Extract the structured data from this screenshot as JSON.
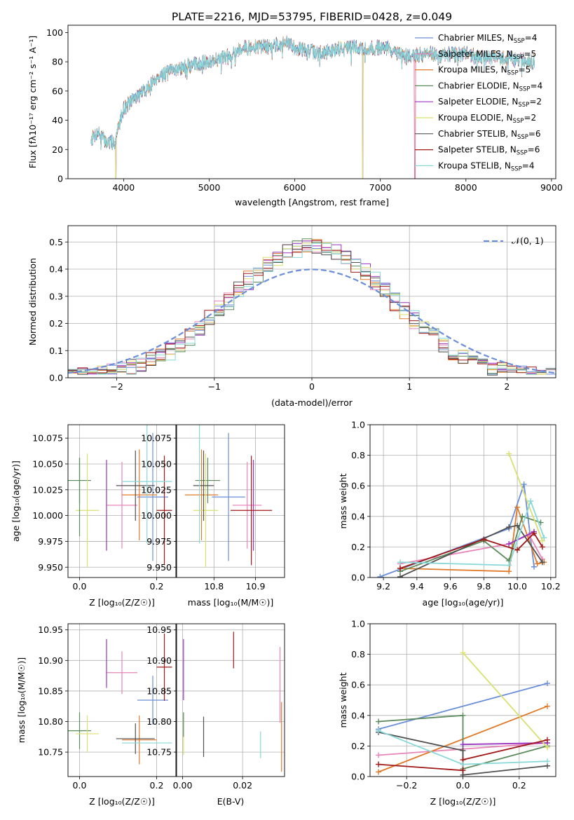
{
  "figure": {
    "title": "PLATE=2216, MJD=53795, FIBERID=0428, z=0.049",
    "palette": [
      "#6a8ed8",
      "#e885b8",
      "#e07a2a",
      "#5b8a5b",
      "#9a34c0",
      "#d9e070",
      "#505050",
      "#a01818",
      "#88d8d8"
    ]
  },
  "chart_data": [
    {
      "id": "spectrum",
      "type": "line",
      "xlabel": "wavelength [Angstrom, rest frame]",
      "ylabel": "Flux [fλ10⁻¹⁷ erg cm⁻² s⁻¹ A⁻¹]",
      "xlim": [
        3350,
        9050
      ],
      "ylim": [
        0,
        105
      ],
      "xticks": [
        4000,
        5000,
        6000,
        7000,
        8000,
        9000
      ],
      "yticks": [
        0,
        20,
        40,
        60,
        80,
        100
      ],
      "legend_position": "right",
      "legend": [
        {
          "label": "Chabrier MILES, N",
          "sub": "SSP",
          "tail": "=4"
        },
        {
          "label": "Salpeter MILES, N",
          "sub": "SSP",
          "tail": "=5"
        },
        {
          "label": "Kroupa MILES, N",
          "sub": "SSP",
          "tail": "=5"
        },
        {
          "label": "Chabrier ELODIE, N",
          "sub": "SSP",
          "tail": "=4"
        },
        {
          "label": "Salpeter ELODIE, N",
          "sub": "SSP",
          "tail": "=2"
        },
        {
          "label": "Kroupa ELODIE, N",
          "sub": "SSP",
          "tail": "=2"
        },
        {
          "label": "Chabrier STELIB, N",
          "sub": "SSP",
          "tail": "=6"
        },
        {
          "label": "Salpeter STELIB, N",
          "sub": "SSP",
          "tail": "=6"
        },
        {
          "label": "Kroupa STELIB, N",
          "sub": "SSP",
          "tail": "=4"
        }
      ],
      "x_range": [
        3620,
        8800
      ],
      "continuum": [
        [
          3620,
          27
        ],
        [
          3700,
          32
        ],
        [
          3800,
          25
        ],
        [
          3900,
          25
        ],
        [
          3960,
          40
        ],
        [
          4000,
          48
        ],
        [
          4100,
          54
        ],
        [
          4200,
          58
        ],
        [
          4300,
          63
        ],
        [
          4400,
          70
        ],
        [
          4500,
          72
        ],
        [
          4600,
          75
        ],
        [
          4700,
          76
        ],
        [
          4800,
          78
        ],
        [
          4900,
          79
        ],
        [
          5000,
          80
        ],
        [
          5100,
          82
        ],
        [
          5200,
          83
        ],
        [
          5300,
          87
        ],
        [
          5400,
          90
        ],
        [
          5500,
          89
        ],
        [
          5600,
          91
        ],
        [
          5700,
          90
        ],
        [
          5800,
          92
        ],
        [
          5900,
          93
        ],
        [
          6000,
          90
        ],
        [
          6100,
          88
        ],
        [
          6200,
          87
        ],
        [
          6300,
          86
        ],
        [
          6400,
          87
        ],
        [
          6500,
          89
        ],
        [
          6600,
          90
        ],
        [
          6700,
          90
        ],
        [
          6800,
          89
        ],
        [
          6900,
          89
        ],
        [
          7000,
          90
        ],
        [
          7100,
          89
        ],
        [
          7200,
          85
        ],
        [
          7300,
          84
        ],
        [
          7400,
          85
        ],
        [
          7500,
          85
        ],
        [
          7600,
          86
        ],
        [
          7700,
          84
        ],
        [
          7800,
          85
        ],
        [
          7900,
          85
        ],
        [
          8000,
          86
        ],
        [
          8100,
          84
        ],
        [
          8200,
          83
        ],
        [
          8300,
          83
        ],
        [
          8400,
          83
        ],
        [
          8500,
          82
        ],
        [
          8600,
          82
        ],
        [
          8700,
          81
        ],
        [
          8800,
          80
        ]
      ],
      "dropouts": [
        [
          3905,
          3912,
          4,
          5
        ],
        [
          6790,
          6797,
          4,
          5
        ],
        [
          7400,
          7410,
          1,
          7
        ]
      ]
    },
    {
      "id": "residuals",
      "type": "histogram",
      "xlabel": "(data-model)/error",
      "ylabel": "Normed distribution",
      "xlim": [
        -2.5,
        2.5
      ],
      "ylim": [
        0,
        0.56
      ],
      "xticks": [
        -2,
        -1,
        0,
        1,
        2
      ],
      "yticks": [
        0.0,
        0.1,
        0.2,
        0.3,
        0.4,
        0.5
      ],
      "legend": "𝒩(0, 1)",
      "bin_width": 0.1,
      "bin_range": [
        -2.5,
        2.5
      ],
      "gaussian": {
        "mu": 0,
        "sigma": 1
      }
    },
    {
      "id": "age-vs-Z",
      "type": "errorbar",
      "xlabel": "Z [log₁₀(Z/Z☉)]",
      "ylabel": "age  [log₁₀(age/yr)]",
      "xlim": [
        -0.03,
        0.25
      ],
      "ylim": [
        9.94,
        10.088
      ],
      "xticks": [
        0.0,
        0.2
      ],
      "yticks": [
        9.95,
        9.975,
        10.0,
        10.025,
        10.05,
        10.075
      ],
      "points": [
        {
          "s": 0,
          "x": 0.19,
          "xerr": 0.04,
          "y": 10.018,
          "yerr": 0.062
        },
        {
          "s": 1,
          "x": 0.11,
          "xerr": 0.04,
          "y": 10.01,
          "yerr": 0.042
        },
        {
          "s": 2,
          "x": 0.155,
          "xerr": 0.045,
          "y": 10.02,
          "yerr": 0.044
        },
        {
          "s": 3,
          "x": 0.0,
          "xerr": 0.03,
          "y": 10.034,
          "yerr": 0.022
        },
        {
          "s": 4,
          "x": 0.07,
          "xerr": 0.0,
          "y": 10.01,
          "yerr": 0.044
        },
        {
          "s": 5,
          "x": 0.02,
          "xerr": 0.03,
          "y": 10.005,
          "yerr": 0.055
        },
        {
          "s": 6,
          "x": 0.145,
          "xerr": 0.05,
          "y": 10.029,
          "yerr": 0.034
        },
        {
          "s": 7,
          "x": 0.22,
          "xerr": 0.02,
          "y": 10.005,
          "yerr": 0.053
        },
        {
          "s": 8,
          "x": 0.175,
          "xerr": 0.065,
          "y": 10.033,
          "yerr": 0.06
        },
        {
          "s": 3,
          "x": 0.0,
          "xerr": 0.0,
          "y": 10.018,
          "yerr": 0.038
        }
      ]
    },
    {
      "id": "age-vs-mass",
      "type": "errorbar",
      "xlabel": "mass [log₁₀(M/M☉)]",
      "ylabel": "",
      "xlim": [
        10.71,
        10.97
      ],
      "ylim": [
        9.94,
        10.088
      ],
      "xticks": [
        10.8,
        10.9
      ],
      "yticks": [
        9.95,
        9.975,
        10.0,
        10.025,
        10.05,
        10.075
      ],
      "points": [
        {
          "s": 0,
          "x": 10.835,
          "xerr": 0.04,
          "y": 10.018,
          "yerr": 0.062
        },
        {
          "s": 1,
          "x": 10.88,
          "xerr": 0.035,
          "y": 10.01,
          "yerr": 0.042
        },
        {
          "s": 2,
          "x": 10.77,
          "xerr": 0.04,
          "y": 10.02,
          "yerr": 0.044
        },
        {
          "s": 3,
          "x": 10.785,
          "xerr": 0.03,
          "y": 10.034,
          "yerr": 0.022
        },
        {
          "s": 4,
          "x": 10.895,
          "xerr": 0.0,
          "y": 10.01,
          "yerr": 0.044
        },
        {
          "s": 5,
          "x": 10.78,
          "xerr": 0.03,
          "y": 10.005,
          "yerr": 0.055
        },
        {
          "s": 6,
          "x": 10.775,
          "xerr": 0.025,
          "y": 10.029,
          "yerr": 0.034
        },
        {
          "s": 7,
          "x": 10.89,
          "xerr": 0.05,
          "y": 10.005,
          "yerr": 0.053
        },
        {
          "s": 8,
          "x": 10.765,
          "xerr": 0.0,
          "y": 10.033,
          "yerr": 0.06
        }
      ]
    },
    {
      "id": "weight-vs-age",
      "type": "line",
      "xlabel": "age  [log₁₀(age/yr)]",
      "ylabel": "mass weight",
      "xlim": [
        9.12,
        10.23
      ],
      "ylim": [
        0,
        1.0
      ],
      "xticks": [
        9.2,
        9.4,
        9.6,
        9.8,
        10.0,
        10.2
      ],
      "yticks": [
        0.0,
        0.2,
        0.4,
        0.6,
        0.8,
        1.0
      ],
      "series": [
        {
          "s": 0,
          "points": [
            [
              9.18,
              0.005
            ],
            [
              9.95,
              0.32
            ],
            [
              10.04,
              0.61
            ],
            [
              10.1,
              0.07
            ]
          ]
        },
        {
          "s": 1,
          "points": [
            [
              9.3,
              0.09
            ],
            [
              9.95,
              0.22
            ],
            [
              10.07,
              0.28
            ],
            [
              10.15,
              0.12
            ]
          ]
        },
        {
          "s": 2,
          "points": [
            [
              9.3,
              0.06
            ],
            [
              9.95,
              0.04
            ],
            [
              10.0,
              0.46
            ],
            [
              10.12,
              0.09
            ],
            [
              10.16,
              0.1
            ]
          ]
        },
        {
          "s": 3,
          "points": [
            [
              9.3,
              0.04
            ],
            [
              9.8,
              0.24
            ],
            [
              9.95,
              0.11
            ],
            [
              10.03,
              0.4
            ],
            [
              10.14,
              0.36
            ]
          ]
        },
        {
          "s": 4,
          "points": [
            [
              9.95,
              0.22
            ],
            [
              10.1,
              0.3
            ]
          ]
        },
        {
          "s": 5,
          "points": [
            [
              9.95,
              0.81
            ],
            [
              10.15,
              0.24
            ]
          ]
        },
        {
          "s": 6,
          "points": [
            [
              9.3,
              0.005
            ],
            [
              9.95,
              0.33
            ],
            [
              10.0,
              0.34
            ],
            [
              10.15,
              0.1
            ]
          ]
        },
        {
          "s": 7,
          "points": [
            [
              9.3,
              0.06
            ],
            [
              9.8,
              0.25
            ],
            [
              10.0,
              0.18
            ],
            [
              10.1,
              0.29
            ],
            [
              10.15,
              0.2
            ]
          ]
        },
        {
          "s": 8,
          "points": [
            [
              9.3,
              0.1
            ],
            [
              9.95,
              0.08
            ],
            [
              10.08,
              0.5
            ],
            [
              10.16,
              0.26
            ]
          ]
        }
      ]
    },
    {
      "id": "mass-vs-Z",
      "type": "errorbar",
      "xlabel": "Z [log₁₀(Z/Z☉)]",
      "ylabel": "mass [log₁₀(M/M☉)]",
      "xlim": [
        -0.03,
        0.25
      ],
      "ylim": [
        10.71,
        10.96
      ],
      "xticks": [
        0.0,
        0.2
      ],
      "yticks": [
        10.75,
        10.8,
        10.85,
        10.9,
        10.95
      ],
      "points": [
        {
          "s": 0,
          "x": 0.19,
          "xerr": 0.04,
          "y": 10.835,
          "yerr": 0.04
        },
        {
          "s": 1,
          "x": 0.11,
          "xerr": 0.04,
          "y": 10.88,
          "yerr": 0.035
        },
        {
          "s": 2,
          "x": 0.155,
          "xerr": 0.045,
          "y": 10.77,
          "yerr": 0.04
        },
        {
          "s": 3,
          "x": 0.0,
          "xerr": 0.03,
          "y": 10.785,
          "yerr": 0.03
        },
        {
          "s": 4,
          "x": 0.07,
          "xerr": 0.0,
          "y": 10.895,
          "yerr": 0.04
        },
        {
          "s": 5,
          "x": 0.02,
          "xerr": 0.03,
          "y": 10.78,
          "yerr": 0.03
        },
        {
          "s": 6,
          "x": 0.145,
          "xerr": 0.05,
          "y": 10.772,
          "yerr": 0.025
        },
        {
          "s": 7,
          "x": 0.22,
          "xerr": 0.02,
          "y": 10.889,
          "yerr": 0.055
        },
        {
          "s": 8,
          "x": 0.175,
          "xerr": 0.065,
          "y": 10.765,
          "yerr": 0.0
        }
      ]
    },
    {
      "id": "mass-vs-EBV",
      "type": "errorbar",
      "xlabel": "E(B-V)",
      "ylabel": "",
      "xlim": [
        -0.002,
        0.034
      ],
      "ylim": [
        10.71,
        10.96
      ],
      "xticks": [
        0.0,
        0.02
      ],
      "yticks": [
        10.75,
        10.8,
        10.85,
        10.9,
        10.95
      ],
      "points": [
        {
          "s": 4,
          "x": 0.0003,
          "y": 10.885,
          "yerr": 0.05
        },
        {
          "s": 5,
          "x": 0.0003,
          "y": 10.78,
          "yerr": 0.035
        },
        {
          "s": 6,
          "x": 0.007,
          "y": 10.775,
          "yerr": 0.033
        },
        {
          "s": 7,
          "x": 0.017,
          "y": 10.917,
          "yerr": 0.03
        },
        {
          "s": 8,
          "x": 0.026,
          "y": 10.762,
          "yerr": 0.022
        },
        {
          "s": 1,
          "x": 0.0325,
          "y": 10.86,
          "yerr": 0.062
        },
        {
          "s": 2,
          "x": 0.033,
          "y": 10.775,
          "yerr": 0.057
        },
        {
          "s": 3,
          "x": 0.0003,
          "y": 10.795,
          "yerr": 0.02
        }
      ]
    },
    {
      "id": "weight-vs-Z",
      "type": "line",
      "xlabel": "Z [log₁₀(Z/Z☉)]",
      "ylabel": "mass weight",
      "xlim": [
        -0.33,
        0.33
      ],
      "ylim": [
        0,
        1.0
      ],
      "xticks": [
        -0.2,
        0.0,
        0.2
      ],
      "yticks": [
        0.0,
        0.2,
        0.4,
        0.6,
        0.8,
        1.0
      ],
      "series": [
        {
          "s": 0,
          "points": [
            [
              -0.3,
              0.31
            ],
            [
              0.3,
              0.61
            ]
          ]
        },
        {
          "s": 1,
          "points": [
            [
              -0.3,
              0.14
            ],
            [
              0.3,
              0.22
            ]
          ]
        },
        {
          "s": 2,
          "points": [
            [
              -0.3,
              0.03
            ],
            [
              0.3,
              0.46
            ]
          ]
        },
        {
          "s": 3,
          "points": [
            [
              -0.3,
              0.36
            ],
            [
              0.0,
              0.4
            ],
            [
              0.0,
              0.05
            ],
            [
              0.3,
              0.2
            ]
          ]
        },
        {
          "s": 4,
          "points": [
            [
              0.0,
              0.21
            ],
            [
              0.3,
              0.22
            ]
          ]
        },
        {
          "s": 5,
          "points": [
            [
              0.0,
              0.81
            ],
            [
              0.3,
              0.19
            ]
          ]
        },
        {
          "s": 6,
          "points": [
            [
              -0.3,
              0.29
            ],
            [
              0.0,
              0.17
            ],
            [
              0.0,
              0.01
            ],
            [
              0.3,
              0.07
            ]
          ]
        },
        {
          "s": 7,
          "points": [
            [
              -0.3,
              0.08
            ],
            [
              0.0,
              0.04
            ],
            [
              0.0,
              0.11
            ],
            [
              0.3,
              0.24
            ]
          ]
        },
        {
          "s": 8,
          "points": [
            [
              -0.3,
              0.3
            ],
            [
              0.0,
              0.08
            ],
            [
              0.3,
              0.1
            ]
          ]
        }
      ]
    }
  ]
}
